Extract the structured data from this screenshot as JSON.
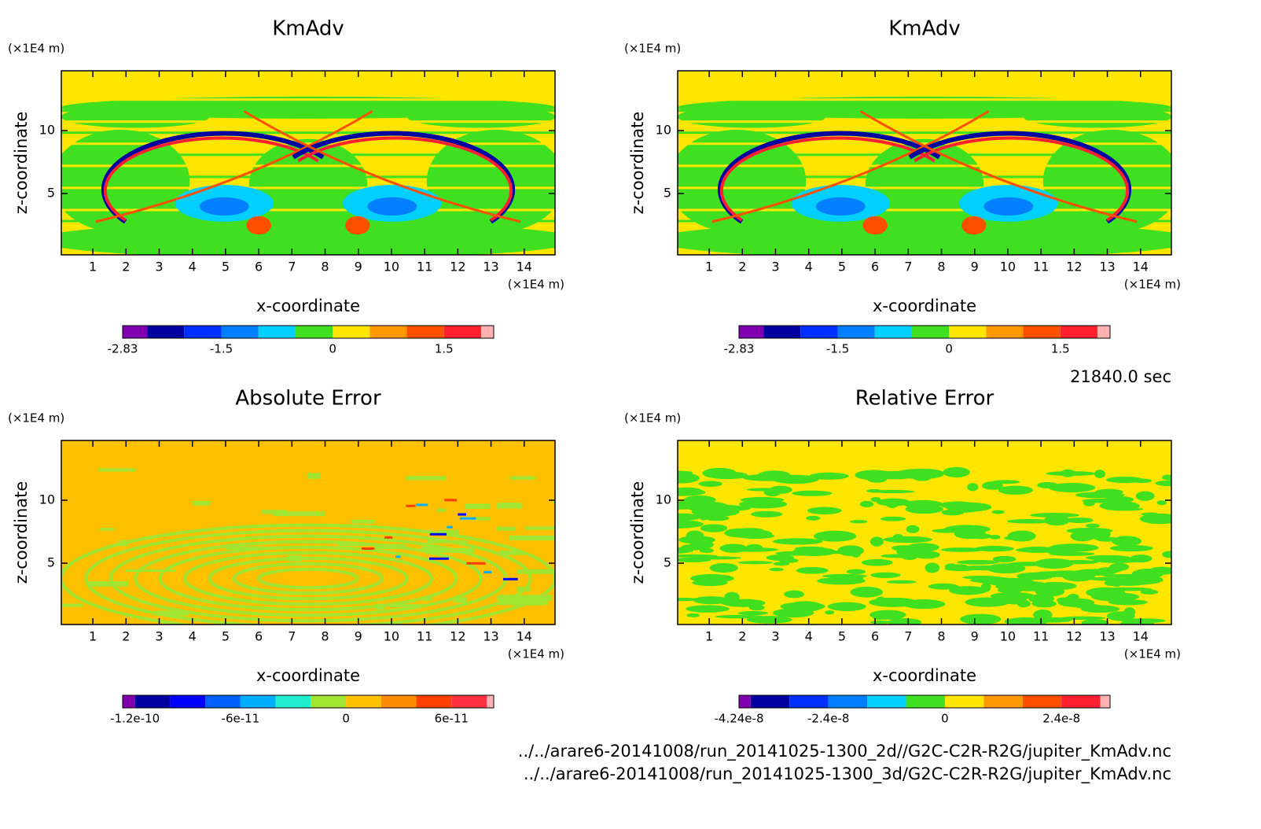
{
  "chart_data": [
    {
      "type": "contour",
      "title": "KmAdv",
      "x_label": "x-coordinate",
      "y_label": "z-coordinate",
      "x_unit": "(×1E4 m)",
      "y_unit": "(×1E4 m)",
      "xlim": [
        0.05,
        14.93
      ],
      "xticks": [
        1,
        2,
        3,
        4,
        5,
        6,
        7,
        8,
        9,
        10,
        11,
        12,
        13,
        14
      ],
      "ylim": [
        0.13,
        14.75
      ],
      "yticks": [
        5,
        10
      ],
      "colorbar": {
        "levels": [
          -2.83,
          -2.5,
          -2,
          -1.5,
          -1,
          -0.5,
          0,
          0.5,
          1,
          1.5,
          2,
          2.17
        ],
        "colors": [
          "#8000b0",
          "#0000a0",
          "#0030ff",
          "#0080ff",
          "#00d0ff",
          "#40e020",
          "#ffe600",
          "#ff9900",
          "#ff5000",
          "#ff2030",
          "#ffb0b0"
        ],
        "ticks": [
          -2.83,
          -1.5,
          0,
          1.5
        ]
      }
    },
    {
      "type": "contour",
      "title": "KmAdv",
      "x_label": "x-coordinate",
      "y_label": "z-coordinate",
      "x_unit": "(×1E4 m)",
      "y_unit": "(×1E4 m)",
      "xlim": [
        0.05,
        14.93
      ],
      "xticks": [
        1,
        2,
        3,
        4,
        5,
        6,
        7,
        8,
        9,
        10,
        11,
        12,
        13,
        14
      ],
      "ylim": [
        0.13,
        14.75
      ],
      "yticks": [
        5,
        10
      ],
      "colorbar": {
        "levels": [
          -2.83,
          -2.5,
          -2,
          -1.5,
          -1,
          -0.5,
          0,
          0.5,
          1,
          1.5,
          2,
          2.17
        ],
        "colors": [
          "#8000b0",
          "#0000a0",
          "#0030ff",
          "#0080ff",
          "#00d0ff",
          "#40e020",
          "#ffe600",
          "#ff9900",
          "#ff5000",
          "#ff2030",
          "#ffb0b0"
        ],
        "ticks": [
          -2.83,
          -1.5,
          0,
          1.5
        ]
      }
    },
    {
      "type": "contour",
      "title": "Absolute Error",
      "x_label": "x-coordinate",
      "y_label": "z-coordinate",
      "x_unit": "(×1E4 m)",
      "y_unit": "(×1E4 m)",
      "xlim": [
        0.05,
        14.93
      ],
      "xticks": [
        1,
        2,
        3,
        4,
        5,
        6,
        7,
        8,
        9,
        10,
        11,
        12,
        13,
        14
      ],
      "ylim": [
        0.13,
        14.75
      ],
      "yticks": [
        5,
        10
      ],
      "colorbar": {
        "levels": [
          -1.27e-10,
          -1.2e-10,
          -1e-10,
          -8e-11,
          -6e-11,
          -4e-11,
          -2e-11,
          0,
          2e-11,
          4e-11,
          6e-11,
          8e-11,
          8.4e-11
        ],
        "colors": [
          "#8000b0",
          "#0000a0",
          "#0000ff",
          "#0060ff",
          "#00b0ff",
          "#20f0d0",
          "#a0e632",
          "#ffc000",
          "#ff8c00",
          "#ff4000",
          "#ff3040",
          "#ffb0b0"
        ],
        "ticks": [
          -1.2e-10,
          -6e-11,
          0,
          6e-11
        ]
      }
    },
    {
      "type": "contour",
      "title": "Relative Error",
      "x_label": "x-coordinate",
      "y_label": "z-coordinate",
      "x_unit": "(×1E4 m)",
      "y_unit": "(×1E4 m)",
      "xlim": [
        0.05,
        14.93
      ],
      "xticks": [
        1,
        2,
        3,
        4,
        5,
        6,
        7,
        8,
        9,
        10,
        11,
        12,
        13,
        14
      ],
      "ylim": [
        0.13,
        14.75
      ],
      "yticks": [
        5,
        10
      ],
      "colorbar": {
        "levels": [
          -4.24e-08,
          -4e-08,
          -3.2e-08,
          -2.4e-08,
          -1.6e-08,
          -8e-09,
          0,
          8e-09,
          1.6e-08,
          2.4e-08,
          3.2e-08,
          3.4e-08
        ],
        "colors": [
          "#8000b0",
          "#0000a0",
          "#0030ff",
          "#0080ff",
          "#00d0ff",
          "#40e020",
          "#ffe600",
          "#ff9900",
          "#ff5000",
          "#ff2030",
          "#ffb0b0"
        ],
        "ticks": [
          -4.24e-08,
          -2.4e-08,
          0,
          2.4e-08
        ]
      }
    }
  ],
  "time_label": "21840.0 sec",
  "files": [
    "../../arare6-20141008/run_20141025-1300_2d//G2C-C2R-R2G/jupiter_KmAdv.nc",
    "../../arare6-20141008/run_20141025-1300_3d/G2C-C2R-R2G/jupiter_KmAdv.nc"
  ]
}
